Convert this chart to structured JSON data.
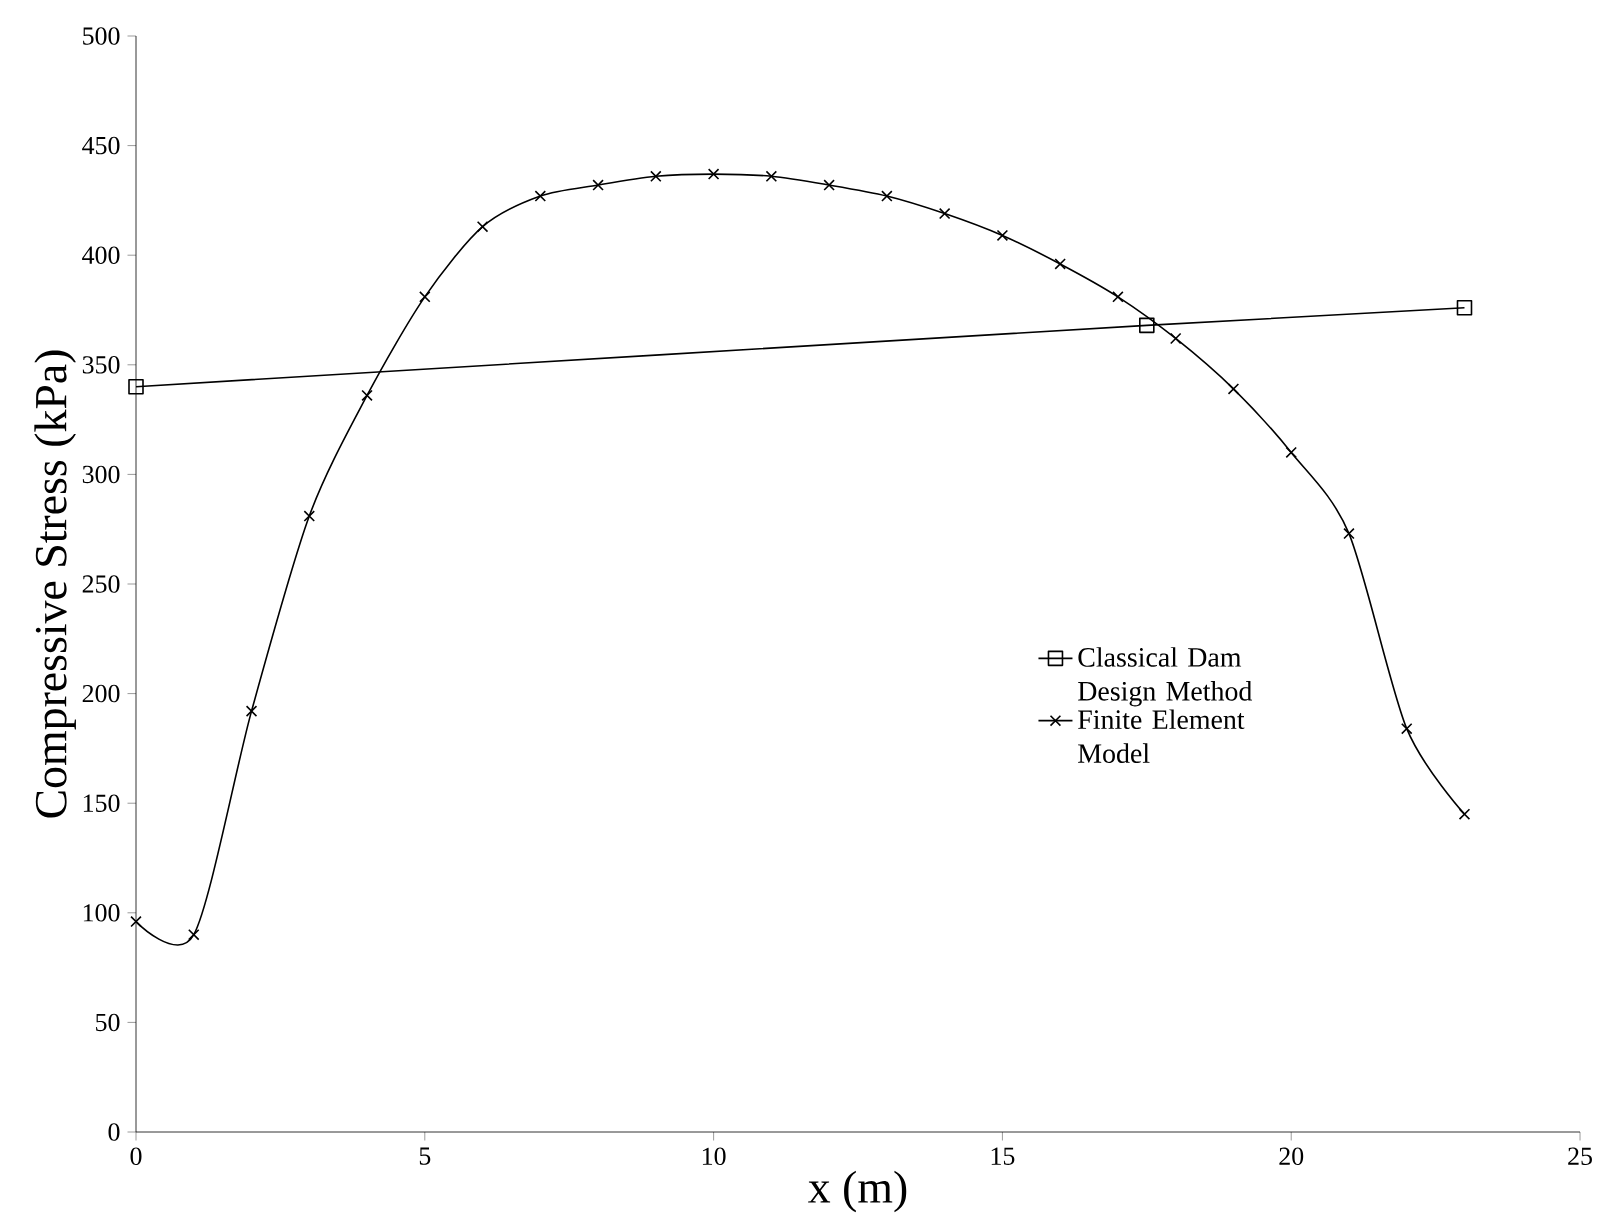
{
  "chart_data": {
    "type": "line",
    "xlabel": "x (m)",
    "ylabel": "Compressive Stress (kPa)",
    "xlim": [
      0,
      25
    ],
    "ylim": [
      0,
      500
    ],
    "xticks": [
      0,
      5,
      10,
      15,
      20,
      25
    ],
    "yticks": [
      0,
      50,
      100,
      150,
      200,
      250,
      300,
      350,
      400,
      450,
      500
    ],
    "grid": false,
    "legend": "right",
    "line_style": "solid",
    "series": [
      {
        "name": "Classical Dam Design Method",
        "color": "#000000",
        "marker": "square",
        "x": [
          0,
          17.5,
          23
        ],
        "values": [
          340,
          368,
          376
        ]
      },
      {
        "name": "Finite Element Model",
        "color": "#000000",
        "marker": "cross",
        "x": [
          0,
          1,
          2,
          3,
          4,
          5,
          6,
          7,
          8,
          9,
          10,
          11,
          12,
          13,
          14,
          15,
          16,
          17,
          18,
          19,
          20,
          21,
          22,
          23
        ],
        "values": [
          96,
          90,
          192,
          281,
          336,
          381,
          413,
          427,
          432,
          436,
          437,
          436,
          432,
          427,
          419,
          409,
          396,
          381,
          362,
          339,
          310,
          273,
          184,
          145
        ]
      }
    ]
  }
}
